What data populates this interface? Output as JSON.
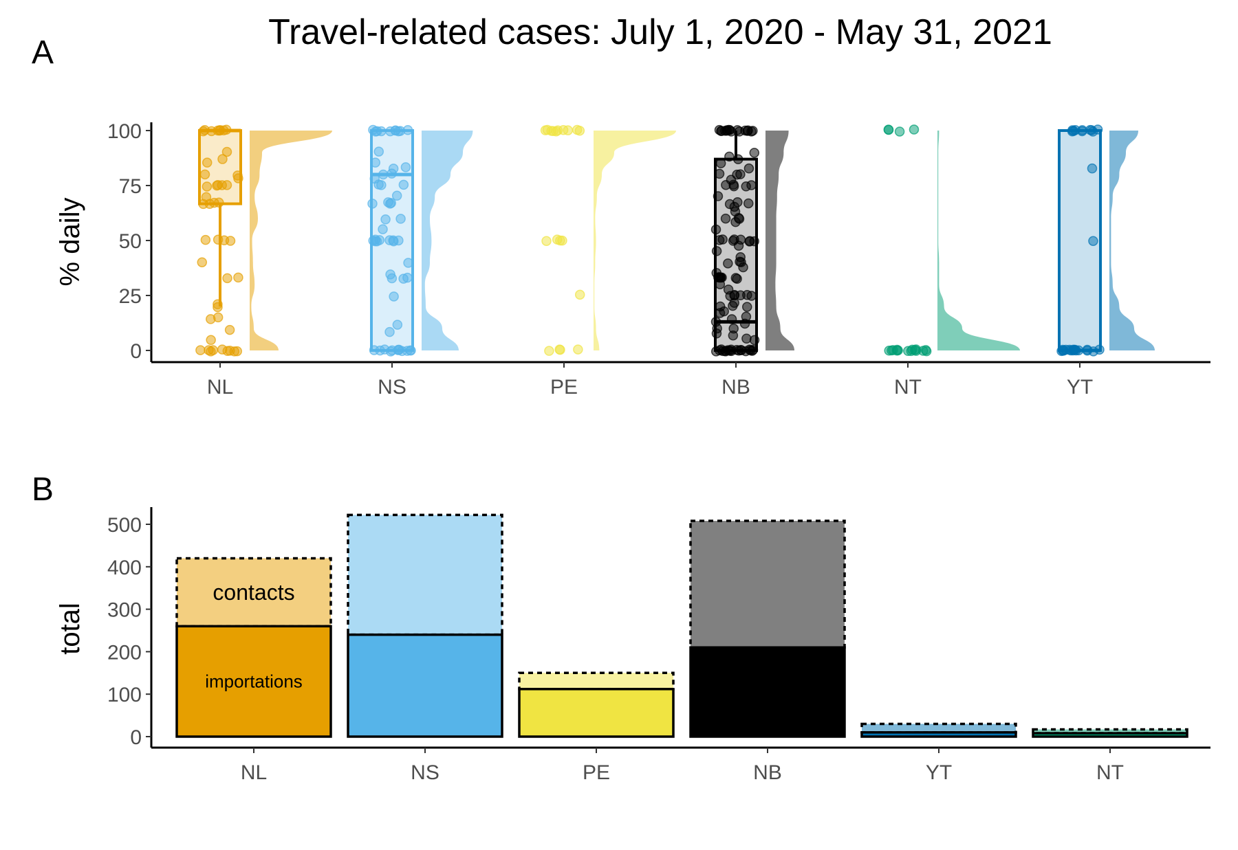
{
  "figure": {
    "title": "Travel-related cases: July 1, 2020 - May 31, 2021"
  },
  "colors": {
    "NL": "#E69F00",
    "NS": "#56B4E9",
    "PE": "#F0E442",
    "NB": "#000000",
    "NT": "#009E73",
    "YT": "#0072B2"
  },
  "chart_data": [
    {
      "panel": "A",
      "type": "scatter",
      "subtype": "raincloud (jittered points, box plot, half-violin density)",
      "title": "",
      "xlabel": "",
      "ylabel": "% daily",
      "ylim": [
        0,
        100
      ],
      "yticks": [
        0,
        25,
        50,
        75,
        100
      ],
      "grid": false,
      "categories": [
        "NL",
        "NS",
        "PE",
        "NB",
        "NT",
        "YT"
      ],
      "series": [
        {
          "name": "NL",
          "box": {
            "min": 20,
            "q1": 66.7,
            "median": 100,
            "q3": 100,
            "max": 100
          },
          "points": [
            100,
            100,
            100,
            100,
            100,
            100,
            100,
            100,
            90,
            87,
            85,
            80,
            80,
            78,
            75,
            75,
            75,
            75,
            75,
            70,
            67,
            67,
            67,
            67,
            50,
            50,
            50,
            50,
            40,
            33,
            33,
            21,
            20,
            15,
            14,
            9,
            5,
            0,
            0,
            0,
            0,
            0,
            0,
            0,
            0,
            0
          ],
          "density": [
            0.35,
            0.05,
            0.02,
            0.06,
            0.04,
            0.03,
            0.1,
            0.06,
            0.12,
            0.15,
            1.0
          ]
        },
        {
          "name": "NS",
          "box": {
            "min": 0,
            "q1": 0,
            "median": 80,
            "q3": 100,
            "max": 100
          },
          "points": [
            100,
            100,
            100,
            100,
            100,
            100,
            100,
            100,
            100,
            100,
            90,
            85,
            83,
            83,
            80,
            80,
            78,
            75,
            75,
            75,
            70,
            67,
            67,
            67,
            67,
            60,
            60,
            55,
            50,
            50,
            50,
            50,
            50,
            50,
            50,
            50,
            50,
            40,
            35,
            33,
            33,
            33,
            25,
            12,
            8,
            0,
            0,
            0,
            0,
            0,
            0,
            0,
            0,
            0,
            0,
            0,
            0
          ],
          "density": [
            0.45,
            0.25,
            0.05,
            0.04,
            0.1,
            0.12,
            0.1,
            0.16,
            0.35,
            0.5,
            0.62
          ]
        },
        {
          "name": "PE",
          "points": [
            100,
            100,
            100,
            100,
            100,
            100,
            100,
            100,
            100,
            100,
            50,
            50,
            50,
            50,
            25,
            0,
            0,
            0,
            0
          ],
          "density": [
            0.07,
            0.03,
            0.01,
            0.01,
            0.02,
            0.03,
            0.02,
            0.04,
            0.1,
            0.25,
            1.0
          ]
        },
        {
          "name": "NB",
          "box": {
            "min": 0,
            "q1": 0,
            "median": 13,
            "q3": 87,
            "max": 100
          },
          "points": [
            100,
            100,
            100,
            100,
            100,
            100,
            100,
            100,
            100,
            100,
            100,
            100,
            100,
            100,
            100,
            100,
            90,
            88,
            87,
            85,
            83,
            80,
            80,
            80,
            78,
            75,
            75,
            75,
            75,
            75,
            70,
            67,
            67,
            67,
            65,
            63,
            60,
            60,
            60,
            58,
            55,
            50,
            50,
            50,
            50,
            50,
            50,
            50,
            50,
            48,
            45,
            42,
            40,
            40,
            40,
            38,
            35,
            33,
            33,
            33,
            33,
            33,
            33,
            33,
            33,
            30,
            28,
            25,
            25,
            25,
            25,
            25,
            25,
            22,
            20,
            20,
            20,
            18,
            17,
            15,
            14,
            13,
            12,
            10,
            10,
            8,
            7,
            5,
            5,
            0,
            0,
            0,
            0,
            0,
            0,
            0,
            0,
            0,
            0,
            0,
            0,
            0,
            0,
            0,
            0,
            0,
            0,
            0
          ],
          "density": [
            0.35,
            0.18,
            0.13,
            0.12,
            0.13,
            0.13,
            0.13,
            0.14,
            0.16,
            0.22,
            0.28
          ]
        },
        {
          "name": "NT",
          "points": [
            100,
            100,
            100,
            100,
            0,
            0,
            0,
            0,
            0,
            0,
            0,
            0,
            0,
            0,
            0,
            0,
            0,
            0,
            0
          ],
          "density": [
            1.0,
            0.3,
            0.08,
            0.02,
            0.02,
            0.01,
            0.01,
            0.01,
            0.01,
            0.01,
            0.02
          ]
        },
        {
          "name": "YT",
          "box": {
            "min": 0,
            "q1": 0,
            "median": 0,
            "q3": 100,
            "max": 100
          },
          "points": [
            100,
            100,
            100,
            100,
            100,
            100,
            100,
            100,
            100,
            100,
            83,
            50,
            0,
            0,
            0,
            0,
            0,
            0,
            0,
            0,
            0,
            0,
            0,
            0,
            0,
            0,
            0,
            0,
            0
          ],
          "density": [
            0.55,
            0.3,
            0.12,
            0.04,
            0.02,
            0.02,
            0.02,
            0.04,
            0.12,
            0.2,
            0.35
          ]
        }
      ]
    },
    {
      "panel": "B",
      "type": "bar",
      "subtype": "stacked",
      "title": "",
      "xlabel": "",
      "ylabel": "total",
      "ylim": [
        0,
        540
      ],
      "yticks": [
        0,
        100,
        200,
        300,
        400,
        500
      ],
      "grid": false,
      "categories": [
        "NL",
        "NS",
        "PE",
        "NB",
        "YT",
        "NT"
      ],
      "series": [
        {
          "name": "importations",
          "values": [
            260,
            240,
            112,
            210,
            10,
            8
          ]
        },
        {
          "name": "contacts",
          "values": [
            160,
            282,
            38,
            298,
            20,
            9
          ]
        }
      ],
      "annotations": [
        {
          "category": "NL",
          "series": "contacts",
          "text": "contacts"
        },
        {
          "category": "NL",
          "series": "importations",
          "text": "importations"
        }
      ]
    }
  ]
}
